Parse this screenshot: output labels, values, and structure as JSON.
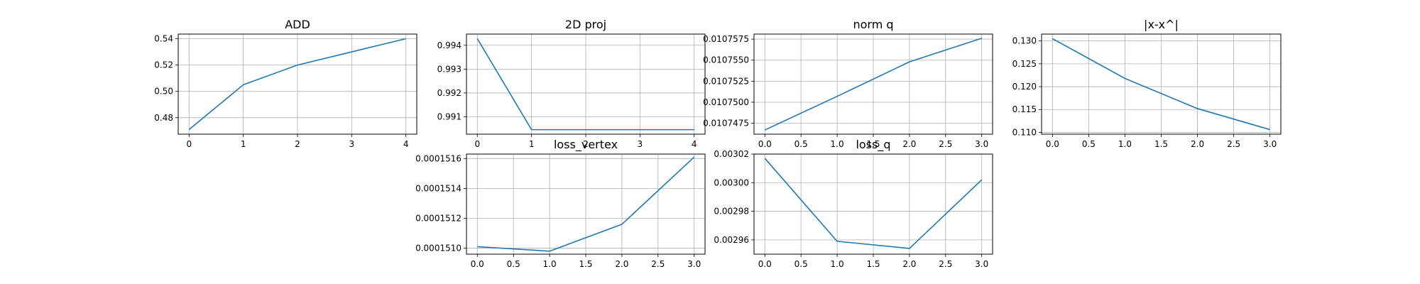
{
  "chart_data": [
    {
      "type": "line",
      "title": "ADD",
      "x": [
        0,
        1,
        2,
        3,
        4
      ],
      "series": [
        {
          "values": [
            0.471,
            0.505,
            0.52,
            0.53,
            0.54
          ]
        }
      ],
      "xticks": [
        0,
        1,
        2,
        3,
        4
      ],
      "xtick_labels": [
        "0",
        "1",
        "2",
        "3",
        "4"
      ],
      "yticks": [
        0.48,
        0.5,
        0.52,
        0.54
      ],
      "ytick_labels": [
        "0.48",
        "0.50",
        "0.52",
        "0.54"
      ],
      "xlim": [
        -0.2,
        4.2
      ],
      "ylim": [
        0.4675,
        0.5435
      ],
      "grid": true,
      "color": "#1f77b4"
    },
    {
      "type": "line",
      "title": "2D proj",
      "x": [
        0,
        1,
        2,
        3,
        4
      ],
      "series": [
        {
          "values": [
            0.99428,
            0.99046,
            0.99046,
            0.99046,
            0.99046
          ]
        }
      ],
      "xticks": [
        0,
        1,
        2,
        3,
        4
      ],
      "xtick_labels": [
        "0",
        "1",
        "2",
        "3",
        "4"
      ],
      "yticks": [
        0.991,
        0.992,
        0.993,
        0.994
      ],
      "ytick_labels": [
        "0.991",
        "0.992",
        "0.993",
        "0.994"
      ],
      "xlim": [
        -0.2,
        4.2
      ],
      "ylim": [
        0.99027,
        0.99447
      ],
      "grid": true,
      "color": "#1f77b4"
    },
    {
      "type": "line",
      "title": "norm q",
      "x": [
        0,
        1,
        2,
        3
      ],
      "series": [
        {
          "values": [
            0.0107467,
            0.0107507,
            0.0107548,
            0.0107576
          ]
        }
      ],
      "xticks": [
        0,
        0.5,
        1,
        1.5,
        2,
        2.5,
        3
      ],
      "xtick_labels": [
        "0.0",
        "0.5",
        "1.0",
        "1.5",
        "2.0",
        "2.5",
        "3.0"
      ],
      "yticks": [
        0.0107475,
        0.01075,
        0.0107525,
        0.010755,
        0.0107575
      ],
      "ytick_labels": [
        "0.0107475",
        "0.0107500",
        "0.0107525",
        "0.0107550",
        "0.0107575"
      ],
      "xlim": [
        -0.15,
        3.15
      ],
      "ylim": [
        0.0107462,
        0.0107581
      ],
      "grid": true,
      "color": "#1f77b4"
    },
    {
      "type": "line",
      "title": "|x-x^|",
      "x": [
        0,
        1,
        2,
        3
      ],
      "series": [
        {
          "values": [
            0.1305,
            0.1218,
            0.1152,
            0.1106
          ]
        }
      ],
      "xticks": [
        0,
        0.5,
        1,
        1.5,
        2,
        2.5,
        3
      ],
      "xtick_labels": [
        "0.0",
        "0.5",
        "1.0",
        "1.5",
        "2.0",
        "2.5",
        "3.0"
      ],
      "yticks": [
        0.11,
        0.115,
        0.12,
        0.125,
        0.13
      ],
      "ytick_labels": [
        "0.110",
        "0.115",
        "0.120",
        "0.125",
        "0.130"
      ],
      "xlim": [
        -0.15,
        3.15
      ],
      "ylim": [
        0.1096,
        0.1315
      ],
      "grid": true,
      "color": "#1f77b4"
    },
    {
      "type": "line",
      "title": "loss_vertex",
      "x": [
        0,
        1,
        2,
        3
      ],
      "series": [
        {
          "values": [
            0.00015101,
            0.00015098,
            0.00015116,
            0.00015161
          ]
        }
      ],
      "xticks": [
        0,
        0.5,
        1,
        1.5,
        2,
        2.5,
        3
      ],
      "xtick_labels": [
        "0.0",
        "0.5",
        "1.0",
        "1.5",
        "2.0",
        "2.5",
        "3.0"
      ],
      "yticks": [
        0.000151,
        0.0001512,
        0.0001514,
        0.0001516
      ],
      "ytick_labels": [
        "0.0001510",
        "0.0001512",
        "0.0001514",
        "0.0001516"
      ],
      "xlim": [
        -0.15,
        3.15
      ],
      "ylim": [
        0.00015096,
        0.00015163
      ],
      "grid": true,
      "color": "#1f77b4"
    },
    {
      "type": "line",
      "title": "loss_q",
      "x": [
        0,
        1,
        2,
        3
      ],
      "series": [
        {
          "values": [
            0.003017,
            0.002959,
            0.002954,
            0.003002
          ]
        }
      ],
      "xticks": [
        0,
        0.5,
        1,
        1.5,
        2,
        2.5,
        3
      ],
      "xtick_labels": [
        "0.0",
        "0.5",
        "1.0",
        "1.5",
        "2.0",
        "2.5",
        "3.0"
      ],
      "yticks": [
        0.00296,
        0.00298,
        0.003,
        0.00302
      ],
      "ytick_labels": [
        "0.00296",
        "0.00298",
        "0.00300",
        "0.00302"
      ],
      "xlim": [
        -0.15,
        3.15
      ],
      "ylim": [
        0.00295,
        0.00302
      ],
      "grid": true,
      "color": "#1f77b4"
    }
  ]
}
